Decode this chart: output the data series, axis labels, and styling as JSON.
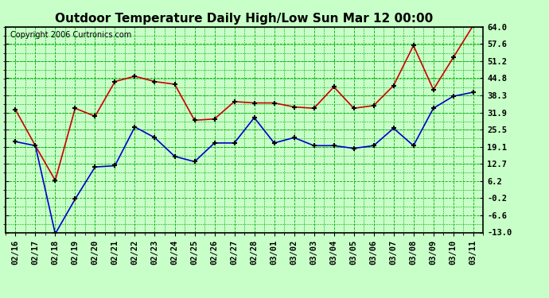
{
  "title": "Outdoor Temperature Daily High/Low Sun Mar 12 00:00",
  "copyright": "Copyright 2006 Curtronics.com",
  "labels": [
    "02/16",
    "02/17",
    "02/18",
    "02/19",
    "02/20",
    "02/21",
    "02/22",
    "02/23",
    "02/24",
    "02/25",
    "02/26",
    "02/27",
    "02/28",
    "03/01",
    "03/02",
    "03/03",
    "03/04",
    "03/05",
    "03/06",
    "03/07",
    "03/08",
    "03/09",
    "03/10",
    "03/11"
  ],
  "high": [
    33.0,
    19.5,
    6.5,
    33.5,
    30.5,
    43.5,
    45.5,
    43.5,
    42.5,
    29.0,
    29.5,
    36.0,
    35.5,
    35.5,
    34.0,
    33.5,
    41.5,
    33.5,
    34.5,
    42.0,
    57.0,
    40.5,
    52.5,
    64.5
  ],
  "low": [
    21.0,
    19.5,
    -13.5,
    -0.5,
    11.5,
    12.0,
    26.5,
    22.5,
    15.5,
    13.5,
    20.5,
    20.5,
    30.0,
    20.5,
    22.5,
    19.5,
    19.5,
    18.5,
    19.5,
    26.0,
    19.5,
    33.5,
    38.0,
    39.5
  ],
  "high_color": "#cc0000",
  "low_color": "#0000cc",
  "bg_color": "#c8ffc8",
  "grid_color": "#00aa00",
  "border_color": "#000000",
  "marker": "+",
  "marker_color": "#000000",
  "ylim": [
    -13.0,
    64.0
  ],
  "yticks": [
    -13.0,
    -6.6,
    -0.2,
    6.2,
    12.7,
    19.1,
    25.5,
    31.9,
    38.3,
    44.8,
    51.2,
    57.6,
    64.0
  ],
  "title_fontsize": 11,
  "copyright_fontsize": 7,
  "tick_fontsize": 7.5,
  "linewidth": 1.2
}
